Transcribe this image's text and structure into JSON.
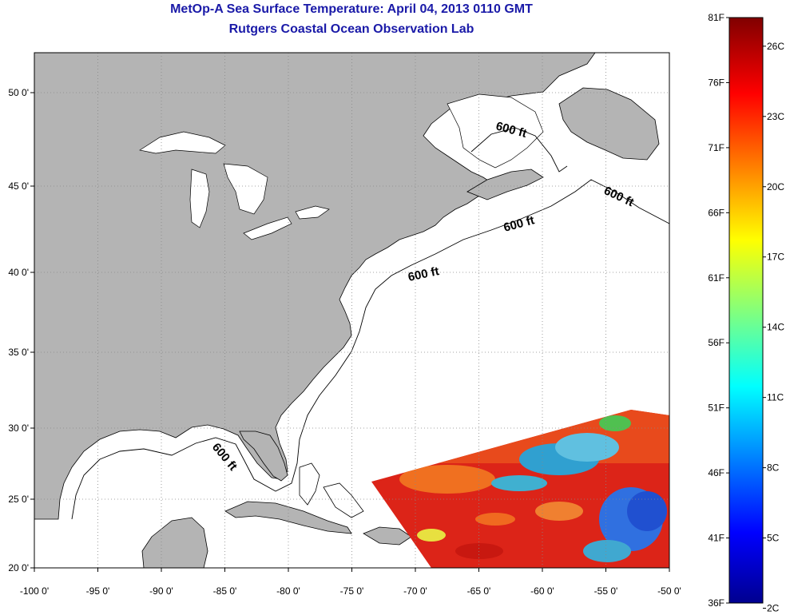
{
  "header": {
    "title": "MetOp-A Sea Surface Temperature:  April 04, 2013 0110 GMT",
    "subtitle": "Rutgers Coastal Ocean Observation Lab"
  },
  "axes": {
    "lat_ticks": [
      "50 0'",
      "45 0'",
      "40 0'",
      "35 0'",
      "30 0'",
      "25 0'",
      "20 0'"
    ],
    "lon_ticks": [
      "-100 0'",
      "-95 0'",
      "-90 0'",
      "-85 0'",
      "-80 0'",
      "-75 0'",
      "-70 0'",
      "-65 0'",
      "-60 0'",
      "-55 0'",
      "-50 0'"
    ],
    "lat_values": [
      50,
      45,
      40,
      35,
      30,
      25,
      20
    ],
    "lon_values": [
      -100,
      -95,
      -90,
      -85,
      -80,
      -75,
      -70,
      -65,
      -60,
      -55,
      -50
    ]
  },
  "contours": {
    "label": "600 ft",
    "count": 5
  },
  "colorbar": {
    "fahrenheit_ticks": [
      "81F",
      "76F",
      "71F",
      "66F",
      "61F",
      "56F",
      "51F",
      "46F",
      "41F",
      "36F"
    ],
    "celsius_ticks": [
      "26C",
      "23C",
      "20C",
      "17C",
      "14C",
      "11C",
      "8C",
      "5C",
      "2C"
    ],
    "min_f": 36,
    "max_f": 81
  },
  "colors": {
    "land": "#b4b4b4",
    "title": "#1a1aa8",
    "sst_warm": "#e0201a",
    "sst_cool": "#2080e0"
  }
}
